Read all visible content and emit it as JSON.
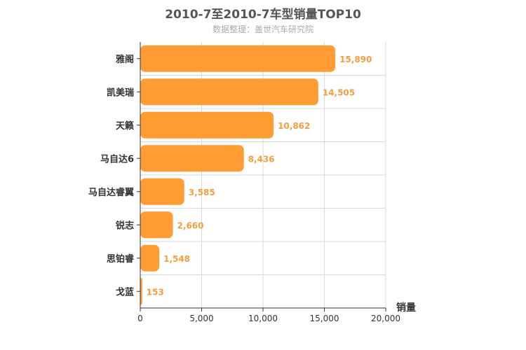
{
  "chart_data": {
    "type": "bar",
    "orientation": "horizontal",
    "title": "2010-7至2010-7车型销量TOP10",
    "subtitle": "数据整理：盖世汽车研究院",
    "xlabel": "销量",
    "ylabel": "",
    "categories": [
      "雅阁",
      "凯美瑞",
      "天籁",
      "马自达6",
      "马自达睿翼",
      "锐志",
      "思铂睿",
      "戈蓝"
    ],
    "values": [
      15890,
      14505,
      10862,
      8436,
      3585,
      2660,
      1548,
      153
    ],
    "value_labels": [
      "15,890",
      "14,505",
      "10,862",
      "8,436",
      "3,585",
      "2,660",
      "1,548",
      "153"
    ],
    "xlim": [
      0,
      20000
    ],
    "xticks": [
      0,
      5000,
      10000,
      15000,
      20000
    ],
    "xtick_labels": [
      "0",
      "5,000",
      "10,000",
      "15,000",
      "20,000"
    ],
    "grid": true,
    "legend": false,
    "bar_color": "#ff9c33",
    "label_color": "#f0a040"
  }
}
